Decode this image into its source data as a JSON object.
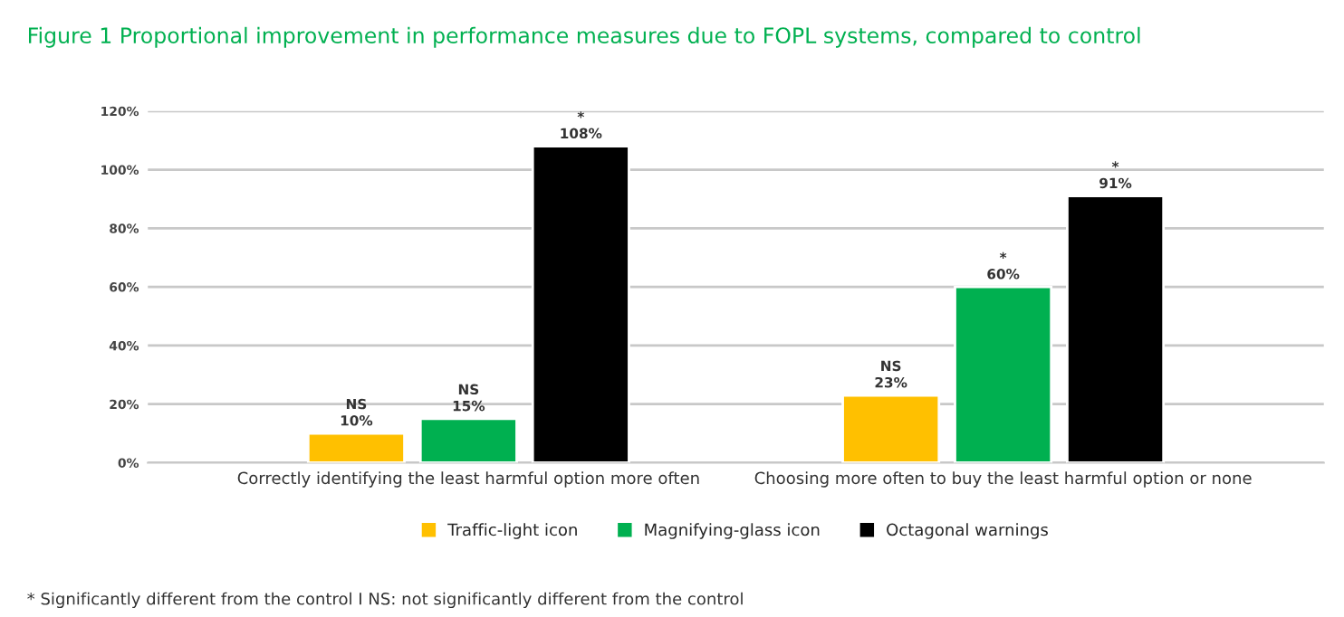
{
  "chart_data": {
    "type": "bar",
    "title": "Figure 1 Proportional improvement in performance measures due to FOPL systems, compared to control",
    "categories": [
      "Correctly identifying the least harmful option more often",
      "Choosing more often to buy the least harmful option or none"
    ],
    "series": [
      {
        "name": "Traffic-light icon",
        "color": "#ffc000",
        "values": [
          10,
          23
        ],
        "value_labels": [
          "NS\n10%",
          "NS\n23%"
        ]
      },
      {
        "name": "Magnifying-glass icon",
        "color": "#00b050",
        "values": [
          15,
          60
        ],
        "value_labels": [
          "NS\n15%",
          "*\n60%"
        ]
      },
      {
        "name": "Octagonal warnings",
        "color": "#000000",
        "values": [
          108,
          91
        ],
        "value_labels": [
          "*\n108%",
          "*\n91%"
        ]
      }
    ],
    "ylim": [
      0,
      120
    ],
    "yticks": [
      {
        "value": 0,
        "label": "0%"
      },
      {
        "value": 20,
        "label": "20%"
      },
      {
        "value": 40,
        "label": "40%"
      },
      {
        "value": 60,
        "label": "60%"
      },
      {
        "value": 80,
        "label": "80%"
      },
      {
        "value": 100,
        "label": "100%"
      },
      {
        "value": 120,
        "label": "120%"
      }
    ],
    "grid": "y",
    "legend": "bottom",
    "annotations": [
      "* Significantly different from the control I NS: not significantly different from the control"
    ]
  }
}
